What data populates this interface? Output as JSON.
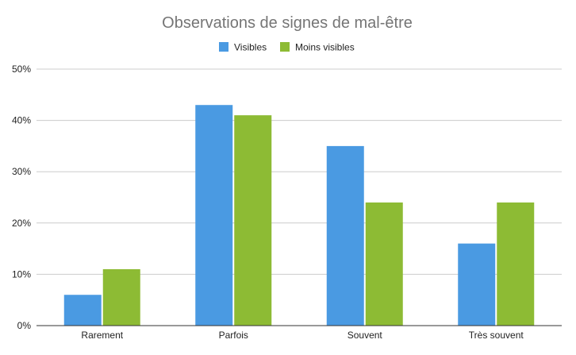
{
  "chart_data": {
    "type": "bar",
    "title": "Observations de signes de mal-être",
    "categories": [
      "Rarement",
      "Parfois",
      "Souvent",
      "Très souvent"
    ],
    "series": [
      {
        "name": "Visibles",
        "values": [
          6,
          43,
          35,
          16
        ],
        "color": "#4a9ae2"
      },
      {
        "name": "Moins visibles",
        "values": [
          11,
          41,
          24,
          24
        ],
        "color": "#8dbb34"
      }
    ],
    "ylim": [
      0,
      50
    ],
    "yticks": [
      "0%",
      "10%",
      "20%",
      "30%",
      "40%",
      "50%"
    ],
    "grid": true,
    "legend": "top-center"
  }
}
